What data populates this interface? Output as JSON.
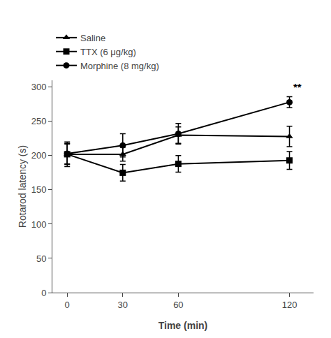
{
  "chart_data": {
    "type": "line",
    "x": [
      0,
      30,
      60,
      120
    ],
    "xlabel": "Time (min)",
    "ylabel": "Rotarod latency (s)",
    "series": [
      {
        "name": "Saline",
        "color": "#000000",
        "marker": "triangle",
        "values": [
          202,
          202,
          230,
          228
        ],
        "errors": [
          18,
          10,
          12,
          15
        ]
      },
      {
        "name": "TTX (6 μg/kg)",
        "color": "#000000",
        "marker": "square",
        "values": [
          202,
          175,
          188,
          193
        ],
        "errors": [
          15,
          12,
          12,
          13
        ]
      },
      {
        "name": "Morphine (8 mg/kg)",
        "color": "#000000",
        "marker": "circle",
        "values": [
          203,
          215,
          232,
          278
        ],
        "errors": [
          15,
          17,
          15,
          8
        ]
      }
    ],
    "annotations": [
      {
        "text": "**",
        "x": 120,
        "y": 290
      }
    ],
    "xlim": [
      -8,
      133
    ],
    "xticks": [
      0,
      30,
      60,
      120
    ],
    "ylim": [
      0,
      310
    ],
    "yticks": [
      0,
      50,
      100,
      150,
      200,
      250,
      300
    ],
    "grid": false,
    "legend": "top left"
  }
}
